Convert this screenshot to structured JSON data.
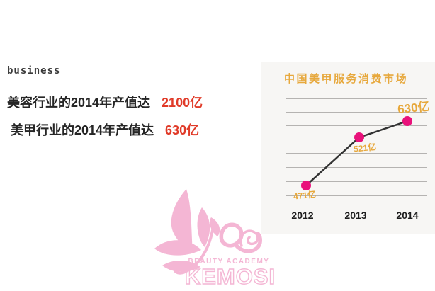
{
  "intro": {
    "heading": "business",
    "lines": [
      {
        "text": "美容行业的2014年产值达",
        "value": "2100亿"
      },
      {
        "text": "美甲行业的2014年产值达",
        "value": "630亿"
      }
    ]
  },
  "chart_data": {
    "type": "line",
    "title": "中国美甲服务消费市场",
    "x": [
      "2012",
      "2013",
      "2014"
    ],
    "series": [
      {
        "name": "中国美甲服务消费市场",
        "values": [
          471,
          521,
          630
        ]
      }
    ],
    "unit": "亿",
    "point_labels": [
      "471亿",
      "521亿",
      "630亿"
    ],
    "xlabel": "",
    "ylabel": "",
    "ylim": [
      400,
      700
    ],
    "grid": true,
    "gridline_count": 9,
    "legend_position": "none"
  },
  "watermark": {
    "tagline": "BEAUTY ACADEMY",
    "brand": "KEMOSI"
  },
  "colors": {
    "accent_red": "#e03a28",
    "gold": "#e7a83c",
    "magenta": "#e9127b",
    "line": "#333333",
    "watermark_pink": "#f4b6d4",
    "panel_bg": "#f7f6f4",
    "grid": "#b5b3b1"
  }
}
